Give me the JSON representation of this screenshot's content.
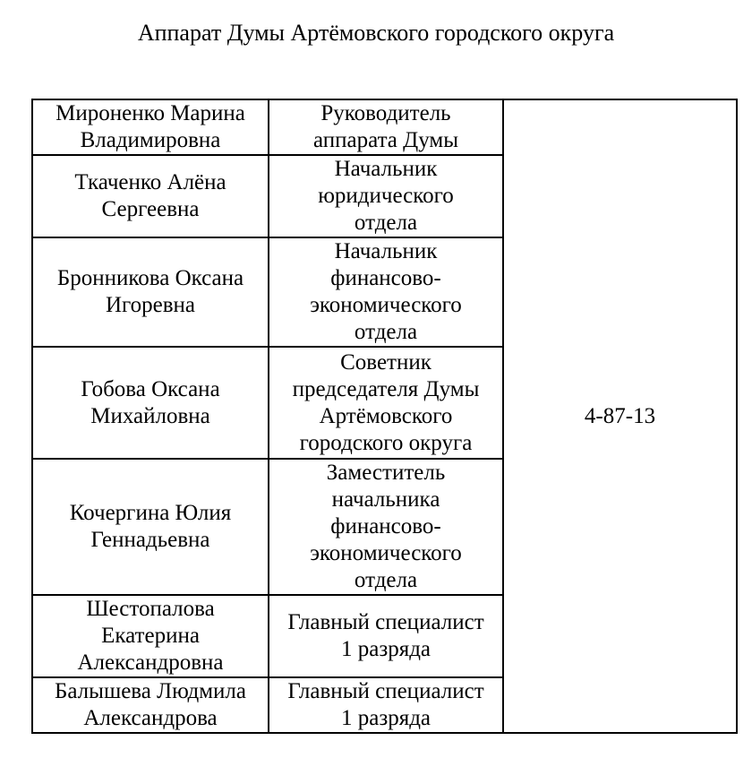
{
  "page": {
    "title": "Аппарат Думы Артёмовского городского округа"
  },
  "staff_table": {
    "rows": [
      {
        "name": "Мироненко Марина\nВладимировна",
        "position": "Руководитель\nаппарата Думы"
      },
      {
        "name": "Ткаченко Алёна\nСергеевна",
        "position": "Начальник\nюридического\nотдела"
      },
      {
        "name": "Бронникова Оксана\nИгоревна",
        "position": "Начальник\nфинансово-\nэкономического\nотдела"
      },
      {
        "name": "Гобова Оксана\nМихайловна",
        "position": "Советник\nпредседателя Думы\nАртёмовского\nгородского округа"
      },
      {
        "name": "Кочергина Юлия\nГеннадьевна",
        "position": "Заместитель\nначальника\nфинансово-\nэкономического\nотдела"
      },
      {
        "name": "Шестопалова\nЕкатерина\nАлександровна",
        "position": "Главный специалист\n1 разряда"
      },
      {
        "name": "Балышева Людмила\nАлександрова",
        "position": "Главный специалист\n1 разряда"
      }
    ],
    "phone": "4-87-13"
  },
  "colors": {
    "text": "#000000",
    "border": "#000000",
    "background": "#ffffff"
  }
}
